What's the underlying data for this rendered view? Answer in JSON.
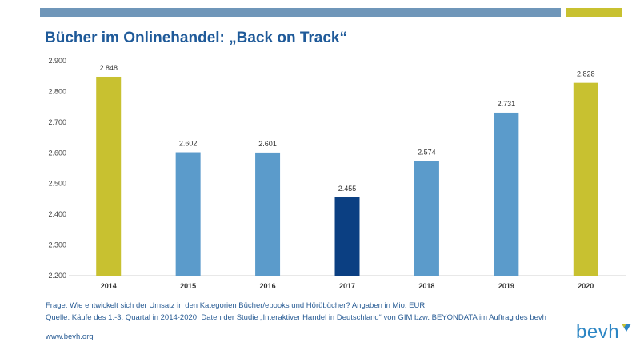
{
  "header": {
    "title": "Bücher im Onlinehandel: „Back on Track“"
  },
  "chart_data": {
    "type": "bar",
    "title": "Bücher im Onlinehandel: „Back on Track“",
    "xlabel": "",
    "ylabel": "",
    "categories": [
      "2014",
      "2015",
      "2016",
      "2017",
      "2018",
      "2019",
      "2020"
    ],
    "values": [
      2848,
      2602,
      2601,
      2455,
      2574,
      2731,
      2828
    ],
    "value_labels": [
      "2.848",
      "2.602",
      "2.601",
      "2.455",
      "2.574",
      "2.731",
      "2.828"
    ],
    "bar_colors": [
      "#c8c130",
      "#5b9bcb",
      "#5b9bcb",
      "#0b3f82",
      "#5b9bcb",
      "#5b9bcb",
      "#c8c130"
    ],
    "ylim": [
      2200,
      2900
    ],
    "yticks": [
      2200,
      2300,
      2400,
      2500,
      2600,
      2700,
      2800,
      2900
    ],
    "ytick_labels": [
      "2.200",
      "2.300",
      "2.400",
      "2.500",
      "2.600",
      "2.700",
      "2.800",
      "2.900"
    ],
    "grid": false
  },
  "footnotes": {
    "question": "Frage: Wie entwickelt sich der Umsatz in den Kategorien Bücher/ebooks und Hörübücher? Angaben in Mio. EUR",
    "source": "Quelle: Käufe des 1.-3. Quartal in 2014-2020; Daten der Studie „Interaktiver Handel in Deutschland“ von GIM bzw. BEYONDATA im Auftrag des bevh"
  },
  "footer": {
    "link": "www.bevh.org",
    "logo_text": "bevh"
  },
  "colors": {
    "brand_blue": "#1f5a99",
    "bar_blue": "#5b9bcb",
    "bar_dark": "#0b3f82",
    "bar_yellow": "#c8c130",
    "logo_blue": "#2d86c4"
  }
}
